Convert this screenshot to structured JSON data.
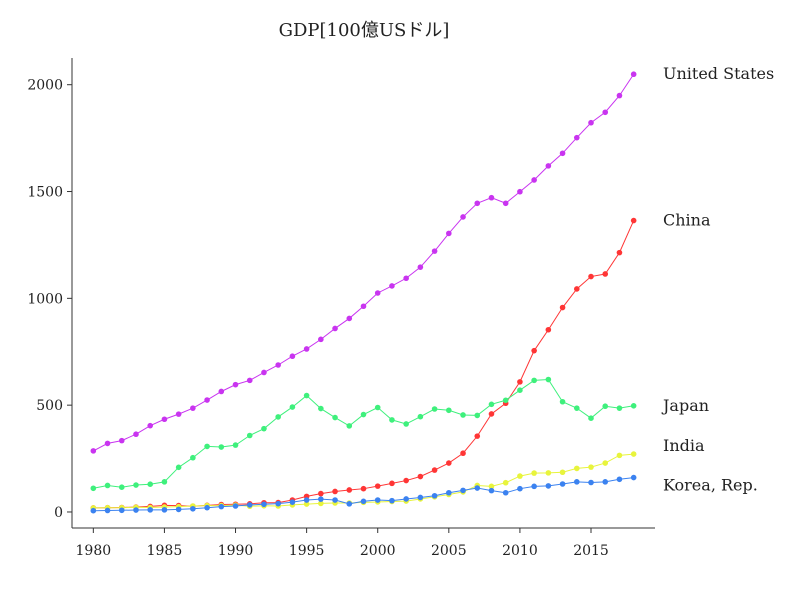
{
  "chart_data": {
    "type": "line",
    "title": "GDP[100億USドル]",
    "xlabel": "",
    "ylabel": "",
    "x": [
      1980,
      1981,
      1982,
      1983,
      1984,
      1985,
      1986,
      1987,
      1988,
      1989,
      1990,
      1991,
      1992,
      1993,
      1994,
      1995,
      1996,
      1997,
      1998,
      1999,
      2000,
      2001,
      2002,
      2003,
      2004,
      2005,
      2006,
      2007,
      2008,
      2009,
      2010,
      2011,
      2012,
      2013,
      2014,
      2015,
      2016,
      2017,
      2018
    ],
    "xlim": [
      1978.5,
      2019.5
    ],
    "ylim": [
      -75,
      2125
    ],
    "xticks": [
      1980,
      1985,
      1990,
      1995,
      2000,
      2005,
      2010,
      2015
    ],
    "yticks": [
      0,
      500,
      1000,
      1500,
      2000
    ],
    "grid": false,
    "legend": "direct-labels-right",
    "series": [
      {
        "name": "United States",
        "color": "#c934f0",
        "values": [
          286,
          321,
          334,
          364,
          404,
          434,
          458,
          486,
          524,
          564,
          596,
          616,
          653,
          688,
          729,
          763,
          808,
          859,
          906,
          963,
          1025,
          1058,
          1094,
          1146,
          1221,
          1304,
          1381,
          1445,
          1471,
          1445,
          1499,
          1554,
          1620,
          1679,
          1752,
          1822,
          1871,
          1949,
          2049
        ]
      },
      {
        "name": "China",
        "color": "#ff3535",
        "values": [
          19,
          20,
          21,
          23,
          26,
          31,
          30,
          27,
          31,
          35,
          36,
          38,
          43,
          44,
          56,
          73,
          86,
          96,
          103,
          109,
          121,
          134,
          147,
          166,
          196,
          229,
          275,
          355,
          459,
          509,
          609,
          755,
          853,
          957,
          1044,
          1102,
          1114,
          1214,
          1364
        ]
      },
      {
        "name": "Japan",
        "color": "#3ef07c",
        "values": [
          111,
          124,
          116,
          126,
          130,
          141,
          209,
          254,
          307,
          304,
          313,
          358,
          390,
          445,
          491,
          545,
          484,
          442,
          403,
          456,
          489,
          431,
          412,
          446,
          482,
          476,
          454,
          452,
          504,
          523,
          570,
          616,
          620,
          516,
          486,
          439,
          495,
          486,
          497
        ]
      },
      {
        "name": "India",
        "color": "#e8f43c",
        "values": [
          19,
          20,
          20,
          22,
          21,
          23,
          25,
          28,
          30,
          30,
          32,
          27,
          29,
          28,
          33,
          37,
          40,
          42,
          42,
          45,
          47,
          49,
          51,
          61,
          71,
          82,
          94,
          124,
          120,
          137,
          168,
          182,
          183,
          186,
          204,
          210,
          229,
          265,
          271
        ]
      },
      {
        "name": "Korea, Rep.",
        "color": "#3b82f0",
        "values": [
          6,
          7,
          8,
          9,
          10,
          10,
          12,
          15,
          20,
          25,
          28,
          33,
          36,
          39,
          46,
          56,
          60,
          56,
          38,
          50,
          56,
          53,
          61,
          68,
          76,
          90,
          101,
          112,
          100,
          90,
          109,
          120,
          122,
          131,
          141,
          138,
          141,
          153,
          161
        ]
      }
    ]
  }
}
